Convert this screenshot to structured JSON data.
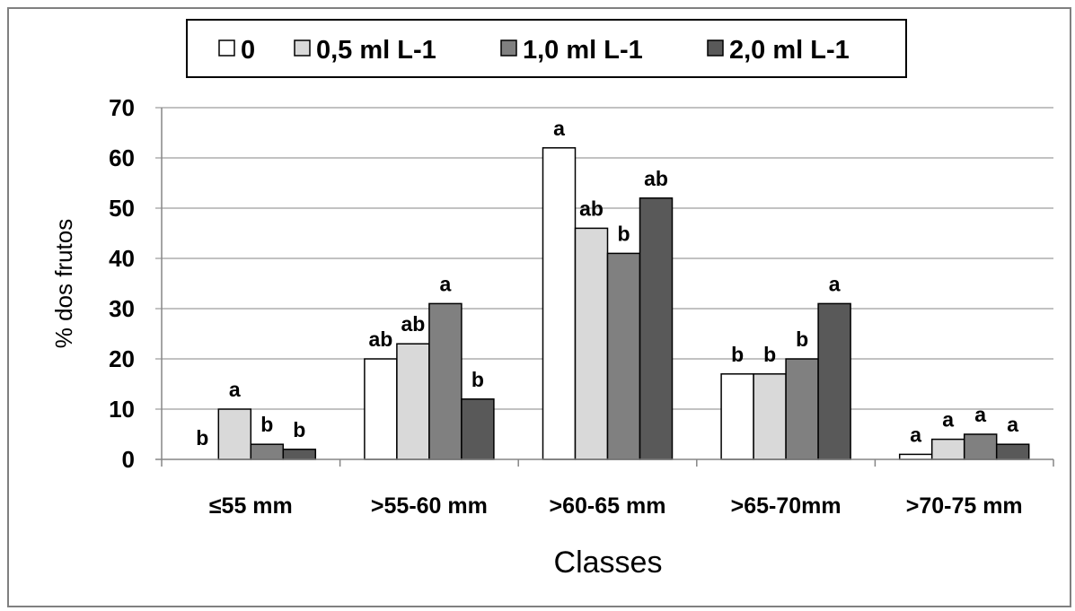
{
  "chart_data": {
    "type": "bar",
    "title": "",
    "xlabel": "Classes",
    "ylabel": "% dos frutos",
    "categories": [
      "≤55 mm",
      ">55-60 mm",
      ">60-65 mm",
      ">65-70mm",
      ">70-75 mm"
    ],
    "ylim": [
      0,
      70
    ],
    "yticks": [
      "0",
      "10",
      "20",
      "30",
      "40",
      "50",
      "60",
      "70"
    ],
    "grid": true,
    "legend_position": "top",
    "series": [
      {
        "name": "0",
        "color": "#ffffff",
        "values": [
          0,
          20,
          62,
          17,
          1
        ],
        "labels": [
          "b",
          "ab",
          "a",
          "b",
          "a"
        ]
      },
      {
        "name": "0,5 ml L-1",
        "color": "#d9d9d9",
        "values": [
          10,
          23,
          46,
          17,
          4
        ],
        "labels": [
          "a",
          "ab",
          "ab",
          "b",
          "a"
        ]
      },
      {
        "name": "1,0 ml L-1",
        "color": "#808080",
        "values": [
          3,
          31,
          41,
          20,
          5
        ],
        "labels": [
          "b",
          "a",
          "b",
          "b",
          "a"
        ]
      },
      {
        "name": "2,0 ml L-1",
        "color": "#595959",
        "values": [
          2,
          12,
          52,
          31,
          3
        ],
        "labels": [
          "b",
          "b",
          "ab",
          "a",
          "a"
        ]
      }
    ]
  }
}
